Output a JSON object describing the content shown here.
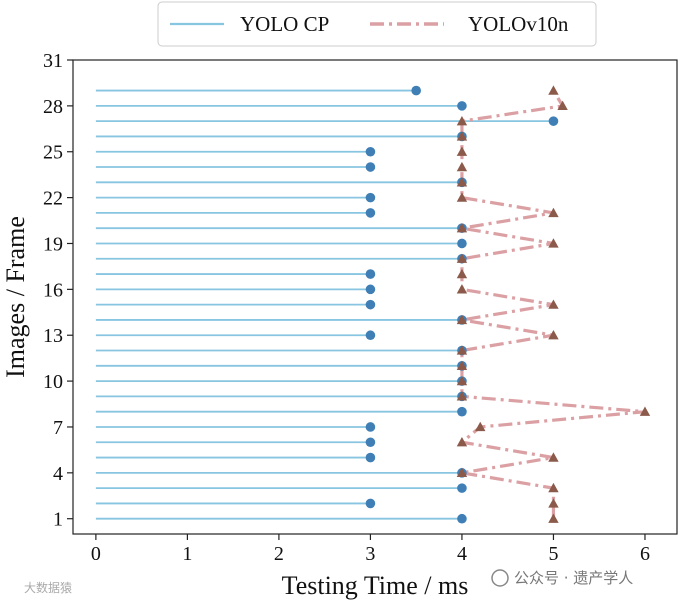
{
  "chart_data": {
    "type": "line",
    "xlabel": "Testing Time / ms",
    "ylabel": "Images / Frame",
    "xlim": [
      -0.25,
      6.35
    ],
    "ylim": [
      0,
      31
    ],
    "xticks": [
      0,
      1,
      2,
      3,
      4,
      5,
      6
    ],
    "yticks": [
      1,
      4,
      7,
      10,
      13,
      16,
      19,
      22,
      25,
      28,
      31
    ],
    "legend_position": "top-center, outside",
    "series": [
      {
        "name": "YOLO CP",
        "style": "horizontal stems from 0 with circle markers",
        "color": "#87c5e1",
        "marker_color": "#3f7fb5",
        "frames": [
          1,
          2,
          3,
          4,
          5,
          6,
          7,
          8,
          9,
          10,
          11,
          12,
          13,
          14,
          15,
          16,
          17,
          18,
          19,
          20,
          21,
          22,
          23,
          24,
          25,
          26,
          27,
          28,
          29
        ],
        "values": [
          4,
          3,
          4,
          4,
          3,
          3,
          3,
          4,
          4,
          4,
          4,
          4,
          3,
          4,
          3,
          3,
          3,
          4,
          4,
          4,
          3,
          3,
          4,
          3,
          3,
          4,
          5,
          4,
          3.5
        ]
      },
      {
        "name": "YOLOv10n",
        "style": "dash-dot line with triangle markers",
        "color": "#dba0a3",
        "marker_color": "#8b5a4a",
        "frames": [
          1,
          2,
          3,
          4,
          5,
          6,
          7,
          8,
          9,
          10,
          11,
          12,
          13,
          14,
          15,
          16,
          17,
          18,
          19,
          20,
          21,
          22,
          23,
          24,
          25,
          26,
          27,
          28,
          29
        ],
        "values": [
          5,
          5,
          5,
          4,
          5,
          4,
          4.2,
          6,
          4,
          4,
          4,
          4,
          5,
          4,
          5,
          4,
          4,
          4,
          5,
          4,
          5,
          4,
          4,
          4,
          4,
          4,
          4,
          5.1,
          5
        ]
      }
    ]
  },
  "watermark": {
    "left_text": "大数据猿",
    "right_text": "公众号 · 遗产学人"
  }
}
